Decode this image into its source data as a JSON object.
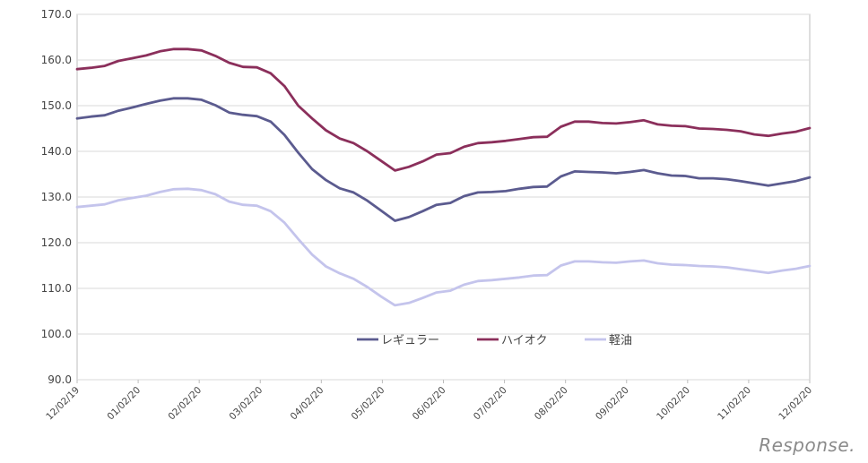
{
  "chart_data": {
    "type": "line",
    "title": "",
    "xlabel": "",
    "ylabel": "",
    "ylim": [
      90,
      170
    ],
    "yticks": [
      "90.0",
      "100.0",
      "110.0",
      "120.0",
      "130.0",
      "140.0",
      "150.0",
      "160.0",
      "170.0"
    ],
    "x_tick_labels": [
      "12/02/19",
      "01/02/20",
      "02/02/20",
      "03/02/20",
      "04/02/20",
      "05/02/20",
      "06/02/20",
      "07/02/20",
      "08/02/20",
      "09/02/20",
      "10/02/20",
      "11/02/20",
      "12/02/20"
    ],
    "legend_position": "center",
    "series": [
      {
        "name": "レギュラー",
        "color": "#5b5b8f",
        "values": [
          147.2,
          147.6,
          147.9,
          148.9,
          149.6,
          150.4,
          151.1,
          151.6,
          151.6,
          151.3,
          150.1,
          148.5,
          148.0,
          147.7,
          146.5,
          143.6,
          139.7,
          136.1,
          133.7,
          131.9,
          131.0,
          129.2,
          127.0,
          124.8,
          125.6,
          126.9,
          128.3,
          128.7,
          130.2,
          131.0,
          131.1,
          131.3,
          131.8,
          132.2,
          132.3,
          134.5,
          135.6,
          135.5,
          135.4,
          135.2,
          135.5,
          135.9,
          135.2,
          134.7,
          134.6,
          134.1,
          134.1,
          133.9,
          133.5,
          133.0,
          132.5,
          133.0,
          133.5,
          134.3
        ]
      },
      {
        "name": "ハイオク",
        "color": "#8b2f5b",
        "values": [
          158.0,
          158.3,
          158.7,
          159.8,
          160.4,
          161.0,
          161.9,
          162.4,
          162.4,
          162.1,
          160.9,
          159.4,
          158.5,
          158.4,
          157.1,
          154.3,
          150.0,
          147.2,
          144.6,
          142.8,
          141.8,
          140.0,
          137.9,
          135.8,
          136.6,
          137.8,
          139.3,
          139.6,
          141.0,
          141.8,
          142.0,
          142.3,
          142.7,
          143.1,
          143.2,
          145.4,
          146.5,
          146.5,
          146.2,
          146.1,
          146.4,
          146.8,
          145.9,
          145.6,
          145.5,
          145.0,
          144.9,
          144.7,
          144.4,
          143.7,
          143.4,
          143.9,
          144.3,
          145.1
        ]
      },
      {
        "name": "軽油",
        "color": "#c4c4ec",
        "values": [
          127.8,
          128.1,
          128.4,
          129.3,
          129.8,
          130.3,
          131.1,
          131.7,
          131.8,
          131.5,
          130.6,
          129.0,
          128.3,
          128.1,
          126.9,
          124.4,
          120.8,
          117.4,
          114.8,
          113.3,
          112.1,
          110.3,
          108.2,
          106.3,
          106.8,
          107.9,
          109.1,
          109.5,
          110.8,
          111.6,
          111.8,
          112.1,
          112.4,
          112.8,
          112.9,
          115.0,
          115.9,
          115.9,
          115.7,
          115.6,
          115.9,
          116.1,
          115.5,
          115.2,
          115.1,
          114.9,
          114.8,
          114.6,
          114.2,
          113.8,
          113.4,
          113.9,
          114.3,
          114.9
        ]
      }
    ]
  },
  "watermark": "Response."
}
